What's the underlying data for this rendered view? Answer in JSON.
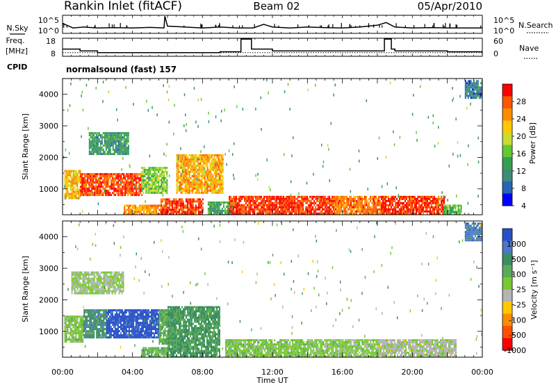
{
  "header": {
    "station": "Rankin Inlet (fitACF)",
    "beam": "Beam 02",
    "date": "05/Apr/2010"
  },
  "panels": {
    "nsky": {
      "left_label": "N.Sky",
      "right_label": "N.Search",
      "left_ticks": [
        "10^5",
        "10^0"
      ],
      "right_ticks": [
        "10^5",
        "10^0"
      ]
    },
    "freq": {
      "left_label_1": "Freq.",
      "left_label_2": "[MHz]",
      "right_label": "Nave",
      "left_ticks": [
        "18",
        "8"
      ],
      "right_ticks": [
        "60",
        "0"
      ]
    },
    "cpid": {
      "label": "CPID",
      "value": "normalsound (fast) 157"
    }
  },
  "power_colorbar": {
    "label": "Power [dB]",
    "ticks": [
      "28",
      "24",
      "20",
      "16",
      "12",
      "8",
      "4"
    ],
    "colors": [
      "#ff0000",
      "#ff5500",
      "#ff8c00",
      "#ffc800",
      "#c8dc32",
      "#64c832",
      "#32a050",
      "#3c8c78",
      "#2864b4",
      "#0000ff"
    ]
  },
  "velocity_colorbar": {
    "label": "Velocity [m s⁻¹]",
    "ticks": [
      "1000",
      "500",
      "100",
      "25",
      "-25",
      "-100",
      "-500",
      "-1000"
    ],
    "colors": [
      "#2850c8",
      "#4b78c8",
      "#3c8c64",
      "#5aaa5a",
      "#78c832",
      "#b4b4b4",
      "#ffc800",
      "#ff8c00",
      "#ff5000",
      "#ff0000"
    ]
  },
  "x_axis": {
    "label": "Time UT",
    "tick_labels": [
      "00:00",
      "04:00",
      "08:00",
      "12:00",
      "16:00",
      "20:00",
      "00:00"
    ]
  },
  "y_axis": {
    "label": "Slant Range [km]",
    "tick_labels": [
      "1000",
      "2000",
      "3000",
      "4000"
    ]
  },
  "chart_data": [
    {
      "type": "line",
      "panel": "N.Sky / N.Search",
      "x": [
        0,
        0.6,
        1.2,
        2,
        3,
        4,
        5,
        5.8,
        5.85,
        6,
        7,
        8,
        9,
        10,
        10.9,
        11.5,
        12,
        13,
        14,
        15,
        16,
        17,
        18,
        18.5,
        19,
        20,
        21,
        22,
        23,
        24
      ],
      "y": [
        0.55,
        0.3,
        0.35,
        0.3,
        0.32,
        0.3,
        0.33,
        0.3,
        0.95,
        0.4,
        0.35,
        0.3,
        0.35,
        0.3,
        0.3,
        0.5,
        0.35,
        0.3,
        0.35,
        0.32,
        0.3,
        0.35,
        0.45,
        0.6,
        0.35,
        0.3,
        0.32,
        0.3,
        0.3,
        0.3
      ],
      "ylabel_left": "N.Sky",
      "ylabel_right": "N.Search"
    },
    {
      "type": "line",
      "panel": "Freq. / Nave",
      "x": [
        0,
        0.5,
        1,
        2,
        4,
        6,
        8,
        9,
        10,
        10.2,
        10.8,
        11,
        12,
        14,
        16,
        18,
        18.4,
        18.8,
        19,
        20,
        22,
        24
      ],
      "freq_mhz": [
        12,
        12,
        11,
        10,
        10,
        10,
        10,
        10.5,
        10.5,
        17.5,
        12,
        12,
        11,
        11,
        11,
        11,
        17.5,
        12,
        11,
        11,
        10.5,
        10.5
      ],
      "nave_dotted": 12,
      "ylim_freq": [
        8,
        18
      ],
      "ylim_nave": [
        0,
        60
      ]
    },
    {
      "type": "heatmap",
      "panel": "Power",
      "x_range_hours": [
        0,
        24
      ],
      "y_range_km": [
        180,
        4500
      ],
      "color_scale_db": [
        0,
        30
      ],
      "regions": [
        {
          "t": [
            0.1,
            1.0
          ],
          "r": [
            700,
            1600
          ],
          "v": 20
        },
        {
          "t": [
            1.0,
            4.5
          ],
          "r": [
            800,
            1500
          ],
          "v": 26
        },
        {
          "t": [
            4.5,
            6.0
          ],
          "r": [
            900,
            1700
          ],
          "v": 14
        },
        {
          "t": [
            1.5,
            3.8
          ],
          "r": [
            2100,
            2800
          ],
          "v": 9
        },
        {
          "t": [
            3.5,
            5.8
          ],
          "r": [
            200,
            500
          ],
          "v": 22
        },
        {
          "t": [
            5.6,
            8.0
          ],
          "r": [
            200,
            700
          ],
          "v": 27
        },
        {
          "t": [
            6.5,
            9.2
          ],
          "r": [
            900,
            2100
          ],
          "v": 21
        },
        {
          "t": [
            8.3,
            9.8
          ],
          "r": [
            200,
            600
          ],
          "v": 10
        },
        {
          "t": [
            9.5,
            15.5
          ],
          "r": [
            200,
            780
          ],
          "v": 27
        },
        {
          "t": [
            15.5,
            18.2
          ],
          "r": [
            200,
            780
          ],
          "v": 24
        },
        {
          "t": [
            18.2,
            21.8
          ],
          "r": [
            200,
            780
          ],
          "v": 27
        },
        {
          "t": [
            21.8,
            22.8
          ],
          "r": [
            200,
            500
          ],
          "v": 12
        },
        {
          "t": [
            23.0,
            24.0
          ],
          "r": [
            3900,
            4450
          ],
          "v": 6
        }
      ]
    },
    {
      "type": "heatmap",
      "panel": "Velocity",
      "x_range_hours": [
        0,
        24
      ],
      "y_range_km": [
        180,
        4500
      ],
      "color_scale_ms": [
        -1000,
        1000
      ],
      "regions": [
        {
          "t": [
            0.1,
            1.2
          ],
          "r": [
            700,
            1500
          ],
          "v": 100
        },
        {
          "t": [
            1.2,
            2.5
          ],
          "r": [
            800,
            1700
          ],
          "v": 500
        },
        {
          "t": [
            2.5,
            5.5
          ],
          "r": [
            800,
            1700
          ],
          "v": 900
        },
        {
          "t": [
            5.5,
            6.5
          ],
          "r": [
            600,
            1700
          ],
          "v": 300
        },
        {
          "t": [
            0.5,
            3.5
          ],
          "r": [
            2200,
            2900
          ],
          "v": 25
        },
        {
          "t": [
            4.5,
            6.0
          ],
          "r": [
            200,
            500
          ],
          "v": 300
        },
        {
          "t": [
            6.0,
            9.0
          ],
          "r": [
            200,
            1800
          ],
          "v": 400
        },
        {
          "t": [
            9.3,
            14.0
          ],
          "r": [
            200,
            750
          ],
          "v": 120
        },
        {
          "t": [
            14.0,
            18.0
          ],
          "r": [
            200,
            750
          ],
          "v": 80
        },
        {
          "t": [
            18.0,
            22.5
          ],
          "r": [
            200,
            750
          ],
          "v": -60
        },
        {
          "t": [
            23.0,
            24.0
          ],
          "r": [
            3900,
            4450
          ],
          "v": 700
        }
      ]
    }
  ]
}
